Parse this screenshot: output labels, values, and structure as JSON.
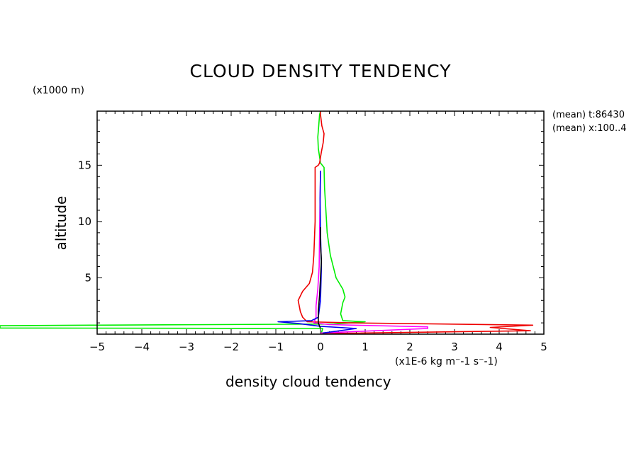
{
  "chart_data": {
    "type": "line",
    "title": "CLOUD DENSITY TENDENCY",
    "xlabel": "density cloud tendency",
    "xunit": "(x1E-6 kg m⁻-1 s⁻-1)",
    "ylabel": "altitude",
    "yunit": "(x1000 m)",
    "annotations": [
      "(mean) t:86430",
      "(mean) x:100..4"
    ],
    "xlim": [
      -5,
      5
    ],
    "ylim": [
      0,
      19.8
    ],
    "xticks": [
      "-5",
      "-4",
      "-3",
      "-2",
      "-1",
      "0",
      "1",
      "2",
      "3",
      "4",
      "5"
    ],
    "yticks": [
      "5",
      "10",
      "15"
    ],
    "grid": false,
    "series": [
      {
        "color": "#00ee00",
        "points": [
          [
            0.02,
            0.1
          ],
          [
            0.05,
            0.5
          ],
          [
            -7.3,
            0.55
          ],
          [
            -7.3,
            0.75
          ],
          [
            -5,
            0.8
          ],
          [
            0.3,
            0.9
          ],
          [
            1.0,
            1.1
          ],
          [
            0.5,
            1.2
          ],
          [
            0.45,
            1.8
          ],
          [
            0.5,
            2.8
          ],
          [
            0.55,
            3.3
          ],
          [
            0.5,
            4.0
          ],
          [
            0.35,
            5.0
          ],
          [
            0.22,
            7.0
          ],
          [
            0.15,
            9.0
          ],
          [
            0.12,
            11.0
          ],
          [
            0.09,
            13.0
          ],
          [
            0.08,
            14.8
          ],
          [
            0.0,
            15.2
          ],
          [
            -0.05,
            16.5
          ],
          [
            -0.06,
            17.5
          ],
          [
            -0.04,
            18.5
          ],
          [
            -0.02,
            19.5
          ],
          [
            0.0,
            19.8
          ]
        ]
      },
      {
        "color": "#ee0000",
        "points": [
          [
            0.0,
            0.05
          ],
          [
            4.7,
            0.3
          ],
          [
            3.8,
            0.6
          ],
          [
            4.75,
            0.8
          ],
          [
            0.7,
            1.0
          ],
          [
            -0.3,
            1.1
          ],
          [
            -0.4,
            1.5
          ],
          [
            -0.45,
            2.0
          ],
          [
            -0.5,
            3.0
          ],
          [
            -0.4,
            3.8
          ],
          [
            -0.25,
            4.5
          ],
          [
            -0.18,
            5.5
          ],
          [
            -0.15,
            7.0
          ],
          [
            -0.12,
            10.0
          ],
          [
            -0.12,
            13.0
          ],
          [
            -0.12,
            14.8
          ],
          [
            -0.05,
            15.0
          ],
          [
            -0.02,
            15.2
          ],
          [
            0.02,
            16.2
          ],
          [
            0.06,
            17.0
          ],
          [
            0.08,
            17.8
          ],
          [
            0.03,
            18.5
          ],
          [
            0.0,
            19.5
          ],
          [
            0.0,
            19.8
          ]
        ]
      },
      {
        "color": "#ff00ff",
        "points": [
          [
            0.0,
            0.1
          ],
          [
            2.4,
            0.5
          ],
          [
            2.4,
            0.65
          ],
          [
            0.2,
            0.85
          ],
          [
            -0.15,
            1.0
          ],
          [
            -0.1,
            1.5
          ],
          [
            -0.1,
            2.5
          ],
          [
            -0.06,
            4.0
          ],
          [
            -0.03,
            6.0
          ],
          [
            -0.02,
            9.0
          ],
          [
            -0.01,
            12.0
          ],
          [
            0.0,
            14.5
          ]
        ]
      },
      {
        "color": "#0000ee",
        "points": [
          [
            0.05,
            0.1
          ],
          [
            0.8,
            0.5
          ],
          [
            0.0,
            0.7
          ],
          [
            -0.5,
            0.95
          ],
          [
            -0.95,
            1.1
          ],
          [
            -0.2,
            1.2
          ],
          [
            -0.05,
            1.5
          ],
          [
            0.0,
            3.0
          ],
          [
            0.02,
            6.0
          ],
          [
            0.0,
            9.0
          ],
          [
            -0.01,
            12.0
          ],
          [
            0.0,
            14.5
          ]
        ]
      },
      {
        "color": "#000000",
        "points": [
          [
            0.0,
            0.5
          ],
          [
            -0.05,
            1.0
          ],
          [
            -0.05,
            2.0
          ],
          [
            -0.02,
            3.5
          ],
          [
            0.0,
            5.0
          ],
          [
            0.02,
            6.5
          ],
          [
            0.0,
            8.0
          ],
          [
            0.0,
            9.5
          ]
        ]
      }
    ]
  }
}
